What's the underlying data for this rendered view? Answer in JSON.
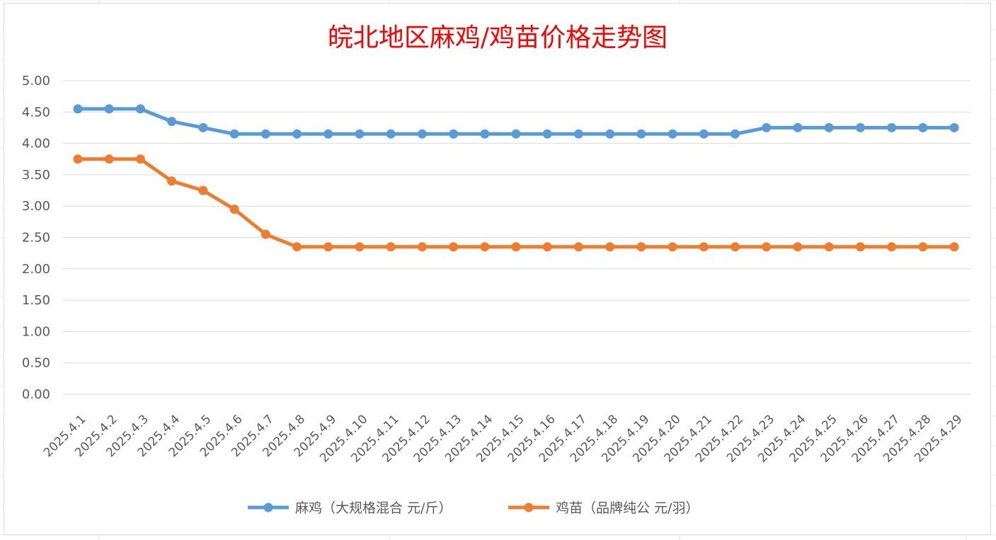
{
  "chart_data": {
    "type": "line",
    "title": "皖北地区麻鸡/鸡苗价格走势图",
    "xlabel": "",
    "ylabel": "",
    "ylim": [
      0,
      5
    ],
    "yticks": [
      "0.00",
      "0.50",
      "1.00",
      "1.50",
      "2.00",
      "2.50",
      "3.00",
      "3.50",
      "4.00",
      "4.50",
      "5.00"
    ],
    "categories": [
      "2025.4.1",
      "2025.4.2",
      "2025.4.3",
      "2025.4.4",
      "2025.4.5",
      "2025.4.6",
      "2025.4.7",
      "2025.4.8",
      "2025.4.9",
      "2025.4.10",
      "2025.4.11",
      "2025.4.12",
      "2025.4.13",
      "2025.4.14",
      "2025.4.15",
      "2025.4.16",
      "2025.4.17",
      "2025.4.18",
      "2025.4.19",
      "2025.4.20",
      "2025.4.21",
      "2025.4.22",
      "2025.4.23",
      "2025.4.24",
      "2025.4.25",
      "2025.4.26",
      "2025.4.27",
      "2025.4.28",
      "2025.4.29"
    ],
    "grid": true,
    "legend_position": "bottom",
    "series": [
      {
        "name": "麻鸡（大规格混合 元/斤）",
        "color": "#5b9bd5",
        "values": [
          4.55,
          4.55,
          4.55,
          4.35,
          4.25,
          4.15,
          4.15,
          4.15,
          4.15,
          4.15,
          4.15,
          4.15,
          4.15,
          4.15,
          4.15,
          4.15,
          4.15,
          4.15,
          4.15,
          4.15,
          4.15,
          4.15,
          4.25,
          4.25,
          4.25,
          4.25,
          4.25,
          4.25,
          4.25
        ]
      },
      {
        "name": "鸡苗（品牌纯公 元/羽）",
        "color": "#ed7d31",
        "values": [
          3.75,
          3.75,
          3.75,
          3.4,
          3.25,
          2.95,
          2.55,
          2.35,
          2.35,
          2.35,
          2.35,
          2.35,
          2.35,
          2.35,
          2.35,
          2.35,
          2.35,
          2.35,
          2.35,
          2.35,
          2.35,
          2.35,
          2.35,
          2.35,
          2.35,
          2.35,
          2.35,
          2.35,
          2.35
        ]
      }
    ]
  }
}
